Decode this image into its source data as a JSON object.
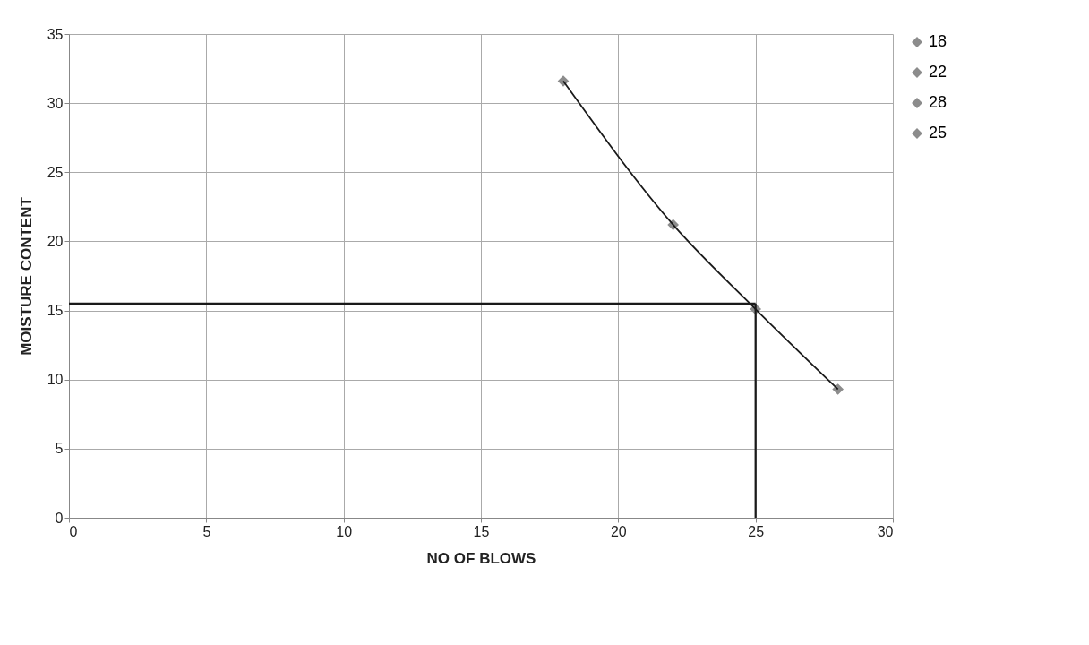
{
  "chart_data": {
    "type": "scatter",
    "xlabel": "NO OF BLOWS",
    "ylabel": "MOISTURE CONTENT",
    "xlim": [
      0,
      30
    ],
    "xticks": [
      0,
      5,
      10,
      15,
      20,
      25,
      30
    ],
    "ylim": [
      0,
      35
    ],
    "yticks": [
      0,
      5,
      10,
      15,
      20,
      25,
      30,
      35
    ],
    "grid": true,
    "legend": "right",
    "marker": "diamond",
    "series": [
      {
        "name": "18",
        "color": "#8c8c8c",
        "x": [
          18
        ],
        "values": [
          31.6
        ]
      },
      {
        "name": "22",
        "color": "#8c8c8c",
        "x": [
          22
        ],
        "values": [
          21.2
        ]
      },
      {
        "name": "28",
        "color": "#8c8c8c",
        "x": [
          28
        ],
        "values": [
          9.3
        ]
      },
      {
        "name": "25",
        "color": "#8c8c8c",
        "x": [
          25
        ],
        "values": [
          15.1
        ]
      },
      {
        "type": "line",
        "marker": "none",
        "color": "#1a1a1a",
        "x": [
          18,
          22,
          25,
          28
        ],
        "values": [
          31.6,
          21.2,
          15.1,
          9.3
        ]
      }
    ],
    "ref_lines": [
      {
        "axis": "x",
        "value": 25,
        "color": "#1a1a1a"
      },
      {
        "axis": "y",
        "value": 15.5,
        "color": "#1a1a1a"
      }
    ]
  }
}
